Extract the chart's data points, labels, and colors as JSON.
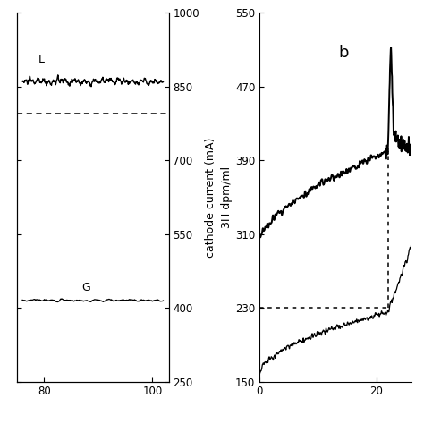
{
  "panel_a": {
    "xlim": [
      75,
      103
    ],
    "ylim": [
      250,
      1000
    ],
    "yticks": [
      250,
      400,
      550,
      700,
      850,
      1000
    ],
    "xticks": [
      80,
      100
    ],
    "ylabel": "cathode current (mA)",
    "label_L": "L",
    "label_G": "G",
    "line_L_y": 860,
    "line_L_noise": 12,
    "line_G_y": 415,
    "line_G_noise": 5,
    "dashed_y": 795,
    "line_x_start": 76,
    "line_x_end": 102
  },
  "panel_b": {
    "xlim": [
      0,
      26
    ],
    "ylim": [
      150,
      550
    ],
    "yticks": [
      150,
      230,
      310,
      390,
      470,
      550
    ],
    "xticks": [
      0,
      20
    ],
    "ylabel": "3H dpm/ml",
    "label_b": "b",
    "dashed_hline_y": 230,
    "dashed_vline_x": 22
  },
  "bg_color": "#ffffff",
  "line_color": "#000000"
}
